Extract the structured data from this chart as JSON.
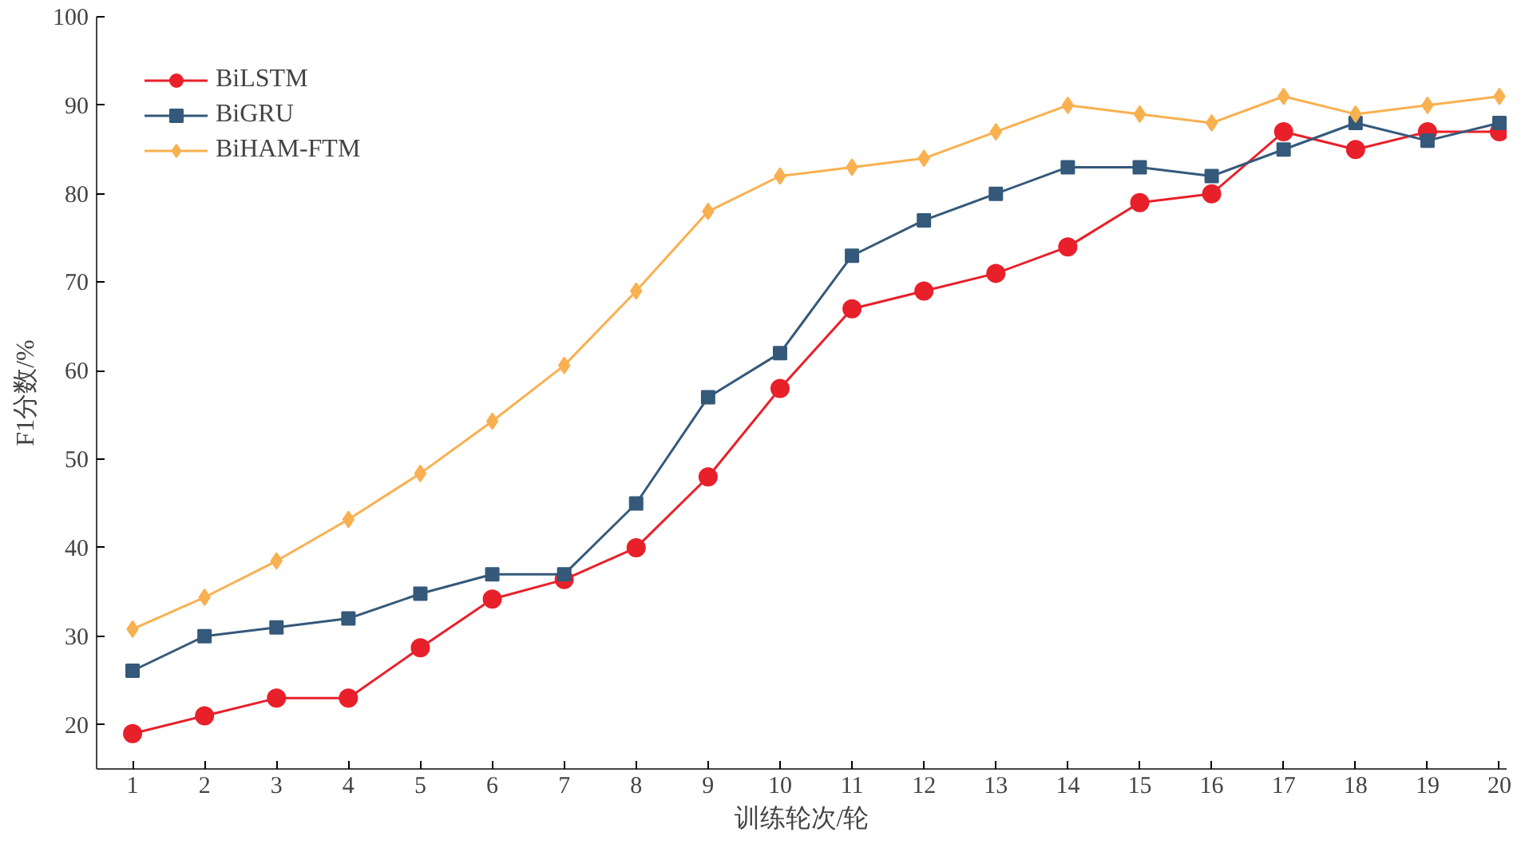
{
  "chart_data": {
    "type": "line",
    "xlabel": "训练轮次/轮",
    "ylabel": "F1分数/%",
    "x": [
      1,
      2,
      3,
      4,
      5,
      6,
      7,
      8,
      9,
      10,
      11,
      12,
      13,
      14,
      15,
      16,
      17,
      18,
      19,
      20
    ],
    "xlim": [
      0.5,
      20.1
    ],
    "xticks": [
      1,
      2,
      3,
      4,
      5,
      6,
      7,
      8,
      9,
      10,
      11,
      12,
      13,
      14,
      15,
      16,
      17,
      18,
      19,
      20
    ],
    "ylim": [
      15,
      100
    ],
    "yticks": [
      20,
      30,
      40,
      50,
      60,
      70,
      80,
      90,
      100
    ],
    "grid": false,
    "legend": "top left",
    "line_style": "solid",
    "series": [
      {
        "name": "BiLSTM",
        "color": "#e8202a",
        "marker": "circle",
        "values": [
          19,
          21,
          23,
          23,
          28.7,
          34.2,
          36.4,
          40,
          48,
          58,
          67,
          69,
          71,
          74,
          79,
          80,
          87,
          85,
          87,
          87
        ]
      },
      {
        "name": "BiGRU",
        "color": "#34597a",
        "marker": "square",
        "values": [
          26.1,
          30,
          31,
          32,
          34.8,
          37,
          37,
          45,
          57,
          62,
          73,
          77,
          80,
          83,
          83,
          82,
          85,
          88,
          86,
          88
        ]
      },
      {
        "name": "BiHAM-FTM",
        "color": "#f9b050",
        "marker": "diamond",
        "values": [
          30.8,
          34.4,
          38.5,
          43.2,
          48.4,
          54.3,
          60.6,
          69,
          78,
          82,
          83,
          84,
          87,
          90,
          89,
          88,
          91,
          89,
          90,
          91
        ]
      }
    ]
  }
}
